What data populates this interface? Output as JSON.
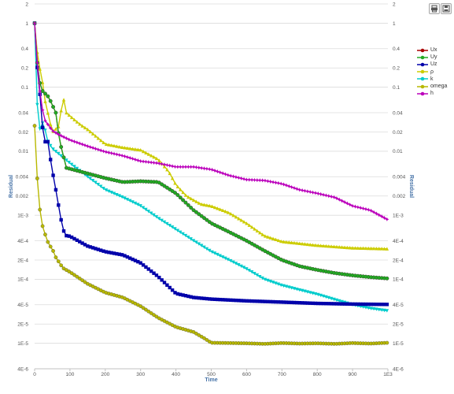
{
  "toolbar": {
    "print_icon": "print-icon",
    "save_icon": "save-icon"
  },
  "chart_data": {
    "type": "line",
    "scale": "log",
    "xlabel": "Time",
    "ylabel_left": "Residual",
    "ylabel_right": "Residual",
    "xlim": [
      0,
      1000
    ],
    "ylim": [
      4e-06,
      2
    ],
    "grid": true,
    "legend_position": "right",
    "x_ticks": [
      "0",
      "100",
      "200",
      "300",
      "400",
      "500",
      "600",
      "700",
      "800",
      "900",
      "1E3"
    ],
    "y_ticks": [
      {
        "v": 2,
        "label": "2"
      },
      {
        "v": 1,
        "label": "1"
      },
      {
        "v": 0.4,
        "label": "0.4"
      },
      {
        "v": 0.2,
        "label": "0.2"
      },
      {
        "v": 0.1,
        "label": "0.1"
      },
      {
        "v": 0.04,
        "label": "0.04"
      },
      {
        "v": 0.02,
        "label": "0.02"
      },
      {
        "v": 0.01,
        "label": "0.01"
      },
      {
        "v": 0.004,
        "label": "0.004"
      },
      {
        "v": 0.002,
        "label": "0.002"
      },
      {
        "v": 0.001,
        "label": "1E-3"
      },
      {
        "v": 0.0004,
        "label": "4E-4"
      },
      {
        "v": 0.0002,
        "label": "2E-4"
      },
      {
        "v": 0.0001,
        "label": "1E-4"
      },
      {
        "v": 4e-05,
        "label": "4E-5"
      },
      {
        "v": 2e-05,
        "label": "2E-5"
      },
      {
        "v": 1e-05,
        "label": "1E-5"
      },
      {
        "v": 4e-06,
        "label": "4E-6"
      }
    ],
    "series": [
      {
        "name": "Ux",
        "color": "#aa0000",
        "marker": "circle",
        "points": [
          [
            0,
            1
          ],
          [
            10,
            0.15
          ],
          [
            20,
            0.09
          ],
          [
            40,
            0.07
          ],
          [
            60,
            0.04
          ],
          [
            70,
            0.015
          ],
          [
            90,
            0.0055
          ],
          [
            150,
            0.0045
          ],
          [
            200,
            0.0038
          ],
          [
            250,
            0.0033
          ],
          [
            300,
            0.0034
          ],
          [
            350,
            0.0033
          ],
          [
            400,
            0.0022
          ],
          [
            450,
            0.0012
          ],
          [
            500,
            0.00075
          ],
          [
            550,
            0.00055
          ],
          [
            600,
            0.0004
          ],
          [
            650,
            0.00028
          ],
          [
            700,
            0.0002
          ],
          [
            750,
            0.00016
          ],
          [
            800,
            0.00014
          ],
          [
            850,
            0.000125
          ],
          [
            900,
            0.000115
          ],
          [
            950,
            0.000108
          ],
          [
            1000,
            0.000103
          ]
        ]
      },
      {
        "name": "Uy",
        "color": "#22aa22",
        "marker": "circle",
        "points": [
          [
            0,
            1
          ],
          [
            10,
            0.15
          ],
          [
            20,
            0.09
          ],
          [
            40,
            0.07
          ],
          [
            60,
            0.04
          ],
          [
            70,
            0.015
          ],
          [
            90,
            0.0055
          ],
          [
            150,
            0.0045
          ],
          [
            200,
            0.0038
          ],
          [
            250,
            0.0033
          ],
          [
            300,
            0.0034
          ],
          [
            350,
            0.0033
          ],
          [
            400,
            0.0022
          ],
          [
            450,
            0.0012
          ],
          [
            500,
            0.00075
          ],
          [
            550,
            0.00055
          ],
          [
            600,
            0.0004
          ],
          [
            650,
            0.00028
          ],
          [
            700,
            0.0002
          ],
          [
            750,
            0.00016
          ],
          [
            800,
            0.00014
          ],
          [
            850,
            0.000125
          ],
          [
            900,
            0.000115
          ],
          [
            950,
            0.000108
          ],
          [
            1000,
            0.000103
          ]
        ]
      },
      {
        "name": "Uz",
        "color": "#0000aa",
        "marker": "square",
        "points": [
          [
            0,
            1
          ],
          [
            10,
            0.12
          ],
          [
            20,
            0.05
          ],
          [
            25,
            0.011
          ],
          [
            35,
            0.018
          ],
          [
            40,
            0.011
          ],
          [
            50,
            0.005
          ],
          [
            60,
            0.0025
          ],
          [
            70,
            0.0012
          ],
          [
            80,
            0.0006
          ],
          [
            90,
            0.00048
          ],
          [
            100,
            0.00047
          ],
          [
            150,
            0.00033
          ],
          [
            200,
            0.00027
          ],
          [
            250,
            0.00024
          ],
          [
            300,
            0.00018
          ],
          [
            350,
            0.00011
          ],
          [
            400,
            6e-05
          ],
          [
            450,
            5.2e-05
          ],
          [
            500,
            4.9e-05
          ],
          [
            600,
            4.6e-05
          ],
          [
            700,
            4.4e-05
          ],
          [
            800,
            4.2e-05
          ],
          [
            900,
            4.1e-05
          ],
          [
            1000,
            4.05e-05
          ]
        ]
      },
      {
        "name": "ρ",
        "color": "#cccc00",
        "marker": "triangle",
        "points": [
          [
            0,
            1
          ],
          [
            10,
            0.25
          ],
          [
            20,
            0.15
          ],
          [
            30,
            0.06
          ],
          [
            50,
            0.02
          ],
          [
            70,
            0.025
          ],
          [
            80,
            0.075
          ],
          [
            90,
            0.04
          ],
          [
            110,
            0.032
          ],
          [
            130,
            0.026
          ],
          [
            150,
            0.022
          ],
          [
            200,
            0.013
          ],
          [
            250,
            0.0115
          ],
          [
            300,
            0.0105
          ],
          [
            350,
            0.0075
          ],
          [
            380,
            0.0048
          ],
          [
            400,
            0.003
          ],
          [
            430,
            0.002
          ],
          [
            470,
            0.0015
          ],
          [
            500,
            0.0014
          ],
          [
            550,
            0.0011
          ],
          [
            600,
            0.00075
          ],
          [
            650,
            0.00048
          ],
          [
            700,
            0.00039
          ],
          [
            800,
            0.00034
          ],
          [
            900,
            0.00031
          ],
          [
            1000,
            0.0003
          ]
        ]
      },
      {
        "name": "k",
        "color": "#00cccc",
        "marker": "triangle-down",
        "points": [
          [
            0,
            1
          ],
          [
            10,
            0.02
          ],
          [
            20,
            0.025
          ],
          [
            25,
            0.03
          ],
          [
            35,
            0.015
          ],
          [
            50,
            0.011
          ],
          [
            100,
            0.0065
          ],
          [
            150,
            0.004
          ],
          [
            200,
            0.0025
          ],
          [
            250,
            0.0019
          ],
          [
            300,
            0.0014
          ],
          [
            350,
            0.0009
          ],
          [
            400,
            0.0006
          ],
          [
            450,
            0.0004
          ],
          [
            500,
            0.00027
          ],
          [
            550,
            0.0002
          ],
          [
            600,
            0.000145
          ],
          [
            650,
            0.0001
          ],
          [
            700,
            8e-05
          ],
          [
            750,
            6.8e-05
          ],
          [
            800,
            5.8e-05
          ],
          [
            850,
            4.8e-05
          ],
          [
            900,
            4e-05
          ],
          [
            950,
            3.5e-05
          ],
          [
            1000,
            3.2e-05
          ]
        ]
      },
      {
        "name": "omega",
        "color": "#b8b800",
        "marker": "circle",
        "points": [
          [
            0,
            0.025
          ],
          [
            10,
            0.002
          ],
          [
            20,
            0.00075
          ],
          [
            30,
            0.0005
          ],
          [
            40,
            0.00035
          ],
          [
            50,
            0.0003
          ],
          [
            60,
            0.00022
          ],
          [
            80,
            0.00015
          ],
          [
            100,
            0.00013
          ],
          [
            150,
            8.5e-05
          ],
          [
            200,
            6.2e-05
          ],
          [
            250,
            5.2e-05
          ],
          [
            300,
            3.8e-05
          ],
          [
            350,
            2.5e-05
          ],
          [
            400,
            1.8e-05
          ],
          [
            450,
            1.5e-05
          ],
          [
            480,
            1.2e-05
          ],
          [
            500,
            1.02e-05
          ],
          [
            550,
            1.01e-05
          ],
          [
            600,
            1e-05
          ],
          [
            650,
            9.8e-06
          ],
          [
            700,
            1.01e-05
          ],
          [
            750,
            9.9e-06
          ],
          [
            800,
            1e-05
          ],
          [
            850,
            9.8e-06
          ],
          [
            900,
            1.01e-05
          ],
          [
            950,
            9.9e-06
          ],
          [
            1000,
            1.02e-05
          ]
        ]
      },
      {
        "name": "h",
        "color": "#bb00bb",
        "marker": "star",
        "points": [
          [
            0,
            1
          ],
          [
            10,
            0.15
          ],
          [
            20,
            0.05
          ],
          [
            30,
            0.03
          ],
          [
            50,
            0.021
          ],
          [
            70,
            0.018
          ],
          [
            100,
            0.015
          ],
          [
            150,
            0.012
          ],
          [
            200,
            0.0098
          ],
          [
            250,
            0.0085
          ],
          [
            300,
            0.007
          ],
          [
            350,
            0.0065
          ],
          [
            400,
            0.0057
          ],
          [
            450,
            0.0057
          ],
          [
            500,
            0.0052
          ],
          [
            550,
            0.0042
          ],
          [
            600,
            0.0036
          ],
          [
            650,
            0.0035
          ],
          [
            700,
            0.0031
          ],
          [
            750,
            0.0025
          ],
          [
            800,
            0.0022
          ],
          [
            850,
            0.0019
          ],
          [
            900,
            0.0014
          ],
          [
            950,
            0.0012
          ],
          [
            1000,
            0.00085
          ]
        ]
      }
    ]
  }
}
